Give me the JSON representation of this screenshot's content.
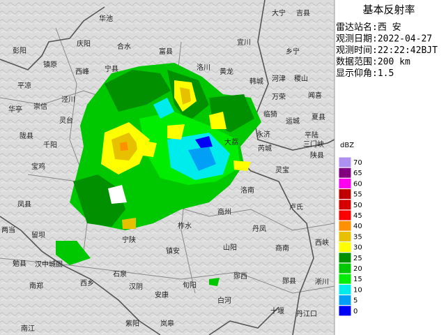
{
  "title": "基本反射率",
  "info": [
    "雷达站名:西 安",
    "观测日期:2022-04-27",
    "观测时间:22:22:42BJT",
    "数据范围:200 km",
    "显示仰角:1.5"
  ],
  "legend": {
    "unit": "dBZ",
    "levels": [
      {
        "label": 70,
        "color": "#ad90f0"
      },
      {
        "label": 65,
        "color": "#800080"
      },
      {
        "label": 60,
        "color": "#ff00f0"
      },
      {
        "label": 55,
        "color": "#c00000"
      },
      {
        "label": 50,
        "color": "#d60000"
      },
      {
        "label": 45,
        "color": "#ff0000"
      },
      {
        "label": 40,
        "color": "#ff9000"
      },
      {
        "label": 35,
        "color": "#e7c000"
      },
      {
        "label": 30,
        "color": "#ffff00"
      },
      {
        "label": 25,
        "color": "#019000"
      },
      {
        "label": 20,
        "color": "#00c800"
      },
      {
        "label": 15,
        "color": "#00ec00"
      },
      {
        "label": 10,
        "color": "#00ecec"
      },
      {
        "label": 5,
        "color": "#01a0f6"
      },
      {
        "label": 0,
        "color": "#0000f6"
      }
    ]
  },
  "places": [
    "华池",
    "庆阳",
    "合水",
    "富县",
    "宜川",
    "大宁",
    "吉县",
    "乡宁",
    "彭阳",
    "镇原",
    "西峰",
    "宁县",
    "洛川",
    "黄龙",
    "韩城",
    "河津",
    "稷山",
    "万荣",
    "闻喜",
    "平凉",
    "泾川",
    "崇信",
    "华亭",
    "灵台",
    "临猗",
    "运城",
    "夏县",
    "永济",
    "芮城",
    "平陆",
    "三门峡",
    "陕县",
    "大荔",
    "灵宝",
    "陇县",
    "千阳",
    "宝鸡",
    "凤县",
    "洛南",
    "卢氏",
    "商州",
    "两当",
    "留坝",
    "宁陕",
    "柞水",
    "丹凤",
    "山阳",
    "商南",
    "镇安",
    "西峡",
    "勉县",
    "汉中城固",
    "南郑",
    "西乡",
    "石泉",
    "汉阴",
    "安康",
    "旬阳",
    "郧西",
    "白河",
    "郧县",
    "淅川",
    "十堰",
    "丹江口",
    "紫阳",
    "岚皋",
    "南江"
  ]
}
